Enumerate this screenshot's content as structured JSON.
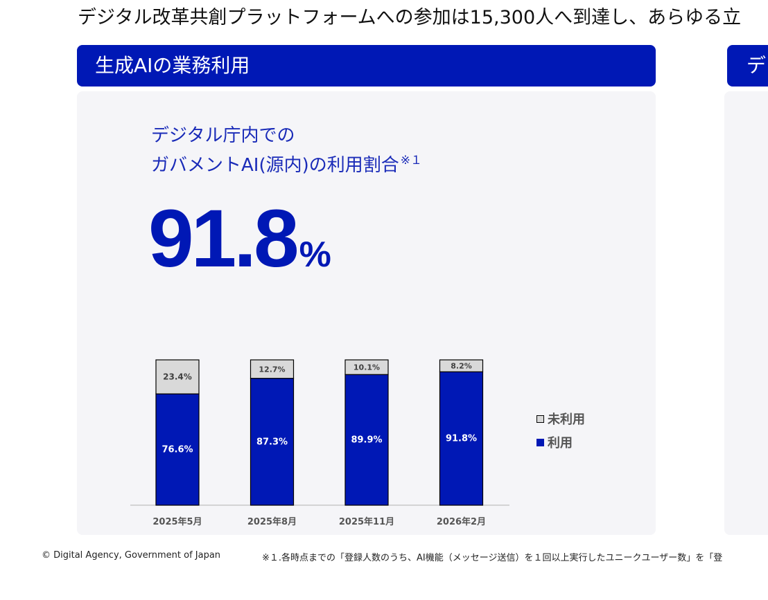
{
  "headline": "デジタル改革共創プラットフォームへの参加は15,300人へ到達し、あらゆる立",
  "left_panel": {
    "header": "生成AIの業務利用",
    "subtitle_line1": "デジタル庁内での",
    "subtitle_line2": "ガバメントAI(源内)の利用割合",
    "subtitle_note": "※１",
    "big_value": "91.8",
    "big_unit": "%"
  },
  "right_panel": {
    "header": "デ"
  },
  "chart_data": {
    "type": "bar",
    "stacked": true,
    "categories": [
      "2025年5月",
      "2025年8月",
      "2025年11月",
      "2026年2月"
    ],
    "series": [
      {
        "name": "利用",
        "values": [
          76.6,
          87.3,
          89.9,
          91.8
        ],
        "labels": [
          "76.6%",
          "87.3%",
          "89.9%",
          "91.8%"
        ],
        "color": "#0018b5"
      },
      {
        "name": "未利用",
        "values": [
          23.4,
          12.7,
          10.1,
          8.2
        ],
        "labels": [
          "23.4%",
          "12.7%",
          "10.1%",
          "8.2%"
        ],
        "color": "#d9d9d9"
      }
    ],
    "ylim": [
      0,
      100
    ],
    "grid": false,
    "legend_position": "right"
  },
  "legend": {
    "unused": "未利用",
    "used": "利用"
  },
  "footer": {
    "copyright": "© Digital Agency, Government of Japan",
    "note": "※１.各時点までの「登録人数のうち、AI機能（メッセージ送信）を１回以上実行したユニークユーザー数」を「登"
  },
  "colors": {
    "accent": "#0018b5",
    "panel_bg": "#f5f5f8",
    "unused": "#d9d9d9"
  }
}
